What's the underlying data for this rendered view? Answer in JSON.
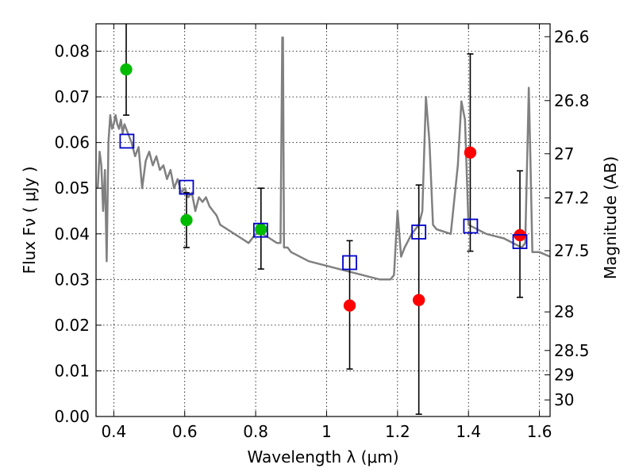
{
  "chart_data": {
    "type": "scatter",
    "xlabel": "Wavelength  λ (μm)",
    "ylabel": "Flux  Fν  ( μJy )",
    "ylabel_right": "Magnitude (AB)",
    "xlim": [
      0.35,
      1.63
    ],
    "ylim": [
      0.0,
      0.086
    ],
    "grid": true,
    "x_ticks": [
      0.4,
      0.6,
      0.8,
      1.0,
      1.2,
      1.4,
      1.6
    ],
    "x_tick_labels": [
      "0.4",
      "0.6",
      "0.8",
      "1",
      "1.2",
      "1.4",
      "1.6"
    ],
    "y_ticks": [
      0.0,
      0.01,
      0.02,
      0.03,
      0.04,
      0.05,
      0.06,
      0.07,
      0.08
    ],
    "y_tick_labels": [
      "0.00",
      "0.01",
      "0.02",
      "0.03",
      "0.04",
      "0.05",
      "0.06",
      "0.07",
      "0.08"
    ],
    "right_ticks": [
      {
        "mag": 26.6,
        "label": "26.6"
      },
      {
        "mag": 26.8,
        "label": "26.8"
      },
      {
        "mag": 27.0,
        "label": "27"
      },
      {
        "mag": 27.2,
        "label": "27.2"
      },
      {
        "mag": 27.5,
        "label": "27.5"
      },
      {
        "mag": 28.0,
        "label": "28"
      },
      {
        "mag": 28.5,
        "label": "28.5"
      },
      {
        "mag": 29.0,
        "label": "29"
      },
      {
        "mag": 30.0,
        "label": "30"
      }
    ],
    "series": [
      {
        "kind": "model-spectrum",
        "color": "#808080",
        "x": [
          0.355,
          0.36,
          0.365,
          0.37,
          0.375,
          0.38,
          0.385,
          0.39,
          0.395,
          0.4,
          0.405,
          0.41,
          0.415,
          0.42,
          0.425,
          0.43,
          0.44,
          0.45,
          0.46,
          0.47,
          0.48,
          0.49,
          0.5,
          0.51,
          0.52,
          0.53,
          0.54,
          0.55,
          0.56,
          0.57,
          0.58,
          0.59,
          0.6,
          0.61,
          0.62,
          0.63,
          0.64,
          0.65,
          0.66,
          0.67,
          0.68,
          0.69,
          0.7,
          0.72,
          0.74,
          0.76,
          0.78,
          0.8,
          0.82,
          0.84,
          0.86,
          0.87,
          0.875,
          0.877,
          0.88,
          0.883,
          0.89,
          0.9,
          0.95,
          1.0,
          1.05,
          1.1,
          1.15,
          1.18,
          1.19,
          1.2,
          1.21,
          1.22,
          1.24,
          1.26,
          1.27,
          1.28,
          1.29,
          1.3,
          1.31,
          1.35,
          1.37,
          1.38,
          1.39,
          1.4,
          1.45,
          1.5,
          1.55,
          1.56,
          1.565,
          1.57,
          1.575,
          1.58,
          1.6,
          1.63
        ],
        "y": [
          0.05,
          0.058,
          0.055,
          0.045,
          0.054,
          0.034,
          0.06,
          0.066,
          0.063,
          0.064,
          0.066,
          0.064,
          0.063,
          0.065,
          0.062,
          0.064,
          0.062,
          0.06,
          0.057,
          0.059,
          0.05,
          0.056,
          0.058,
          0.055,
          0.057,
          0.054,
          0.055,
          0.052,
          0.054,
          0.05,
          0.052,
          0.049,
          0.05,
          0.048,
          0.049,
          0.045,
          0.048,
          0.047,
          0.048,
          0.046,
          0.045,
          0.044,
          0.042,
          0.041,
          0.04,
          0.039,
          0.038,
          0.04,
          0.04,
          0.039,
          0.038,
          0.038,
          0.083,
          0.083,
          0.037,
          0.037,
          0.037,
          0.036,
          0.034,
          0.033,
          0.032,
          0.031,
          0.03,
          0.03,
          0.031,
          0.045,
          0.035,
          0.037,
          0.04,
          0.042,
          0.045,
          0.07,
          0.06,
          0.042,
          0.041,
          0.04,
          0.055,
          0.069,
          0.065,
          0.042,
          0.04,
          0.039,
          0.037,
          0.038,
          0.055,
          0.072,
          0.055,
          0.036,
          0.036,
          0.035
        ]
      },
      {
        "kind": "filled-circles",
        "color": "#00bb00",
        "x": [
          0.435,
          0.605,
          0.815
        ],
        "y": [
          0.076,
          0.043,
          0.041
        ],
        "yerr_low": [
          0.0,
          0.037,
          0.0323
        ],
        "yerr_high": [
          0.0,
          0.049,
          0.05
        ]
      },
      {
        "kind": "filled-circles",
        "color": "#ff0000",
        "x": [
          1.065,
          1.26,
          1.405,
          1.545
        ],
        "y": [
          0.0243,
          0.0255,
          0.0578,
          0.0397
        ],
        "yerr_low": [
          0.0104,
          0.0005,
          0.0362,
          0.0261
        ],
        "yerr_high": [
          0.0385,
          0.0507,
          0.0794,
          0.0538
        ]
      },
      {
        "kind": "open-squares",
        "color": "#0000cc",
        "x": [
          0.437,
          0.605,
          0.814,
          1.065,
          1.26,
          1.406,
          1.545
        ],
        "y": [
          0.0603,
          0.0502,
          0.0408,
          0.0337,
          0.0404,
          0.0417,
          0.0383
        ]
      }
    ],
    "errorbars_gap": [
      {
        "x": 0.435,
        "y_low": 0.066,
        "y_high": 0.086
      }
    ]
  }
}
